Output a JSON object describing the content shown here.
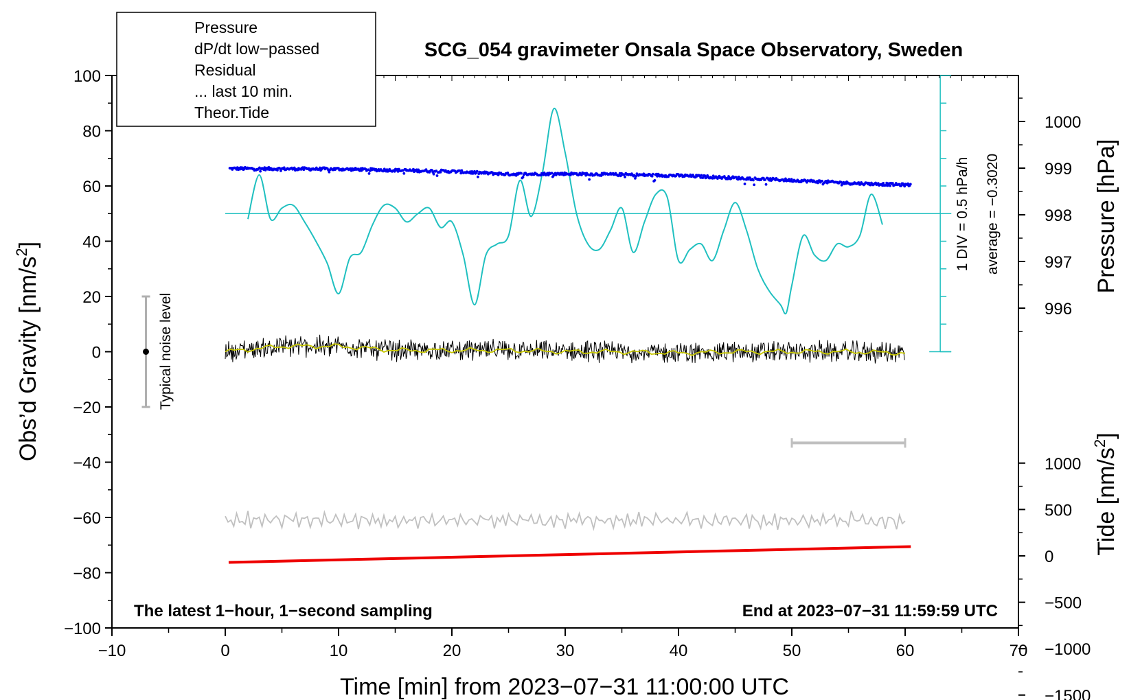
{
  "chart_data": {
    "type": "line",
    "title": "SCG_054 gravimeter Onsala Space Observatory, Sweden",
    "xlabel": "Time [min] from 2023−07−31 11:00:00 UTC",
    "ylabel_left": "Obs’d Gravity [nm/s²]",
    "ylabel_left_main": "Obs’d Gravity [nm/s",
    "ylabel_right_pressure": "Pressure [hPa]",
    "ylabel_right_tide_main": "Tide [nm/s",
    "ylabel_right_tide": "Tide [nm/s²]",
    "superscript": "2",
    "xlim": [
      -10,
      70
    ],
    "ylim": [
      -100,
      100
    ],
    "x_ticks": [
      -10,
      0,
      10,
      20,
      30,
      40,
      50,
      60,
      70
    ],
    "x_tick_labels": [
      "−10",
      "0",
      "10",
      "20",
      "30",
      "40",
      "50",
      "60",
      "70"
    ],
    "y_ticks": [
      -100,
      -80,
      -60,
      -40,
      -20,
      0,
      20,
      40,
      60,
      80,
      100
    ],
    "y_tick_labels": [
      "−100",
      "−80",
      "−60",
      "−40",
      "−20",
      "0",
      "20",
      "40",
      "60",
      "80",
      "100"
    ],
    "pressure_ticks": [
      996,
      997,
      998,
      999,
      1000
    ],
    "pressure_tick_labels": [
      "996",
      "997",
      "998",
      "999",
      "1000"
    ],
    "tide_ticks": [
      -1500,
      -1000,
      -500,
      0,
      500,
      1000
    ],
    "tide_tick_labels": [
      "−1500",
      "−1000",
      "−500",
      "0",
      "500",
      "1000"
    ],
    "legend": [
      {
        "label": "Pressure",
        "color": "#0000ee",
        "marker": true
      },
      {
        "label": "dP/dt low−passed",
        "color": "#20c0c0",
        "marker": true
      },
      {
        "label": "Residual",
        "color": "#000000",
        "marker": false
      },
      {
        "label": "... last 10 min.",
        "color": "#c0c0c0",
        "marker": false
      },
      {
        "label": "Theor.Tide",
        "color": "#ee0000",
        "marker": true
      }
    ],
    "annotations": {
      "noise_label": "Typical noise level",
      "noise_range": [
        -20,
        20
      ],
      "noise_x": -7,
      "div_label": "1 DIV = 0.5 hPa/h",
      "avg_label": "average = −0.3020",
      "bottom_left": "The latest 1−hour, 1−second sampling",
      "bottom_right": "End at 2023−07−31 11:59:59 UTC",
      "last10_range": [
        50,
        60
      ],
      "last10_y": -33
    },
    "series": [
      {
        "name": "Pressure",
        "color": "#0000ee",
        "unit": "hPa",
        "x": [
          0.5,
          10,
          20,
          25,
          30,
          40,
          50,
          55,
          60
        ],
        "values": [
          998.99,
          998.98,
          998.93,
          998.87,
          998.88,
          998.84,
          998.74,
          998.68,
          998.64
        ]
      },
      {
        "name": "dP/dt low−passed",
        "color": "#20c0c0",
        "unit": "gravity-axis",
        "baseline": 50,
        "x": [
          2,
          3,
          4,
          5,
          6,
          7,
          8,
          9,
          10,
          11,
          12,
          13,
          14,
          15,
          16,
          17,
          18,
          19,
          20,
          21,
          22,
          23,
          24,
          25,
          26,
          27,
          28,
          29,
          30,
          31,
          32,
          33,
          34,
          35,
          36,
          37,
          38,
          39,
          40,
          41,
          42,
          43,
          44,
          45,
          46,
          47,
          48,
          49,
          49.5,
          50,
          51,
          52,
          53,
          54,
          55,
          56,
          57,
          58
        ],
        "values": [
          48,
          64,
          48,
          52,
          53,
          47,
          40,
          32,
          21,
          34,
          36,
          46,
          53,
          52,
          47,
          50,
          52,
          45,
          47,
          35,
          17,
          35,
          39,
          42,
          62,
          49,
          65,
          88,
          72,
          50,
          39,
          37,
          44,
          52,
          36,
          47,
          57,
          56,
          33,
          37,
          39,
          33,
          44,
          54,
          44,
          30,
          22,
          17,
          14,
          24,
          42,
          35,
          33,
          39,
          38,
          42,
          57,
          46
        ]
      },
      {
        "name": "Residual",
        "color": "#000000",
        "unit": "nm/s²",
        "x": [
          0,
          5,
          10,
          15,
          20,
          25,
          30,
          35,
          40,
          45,
          50,
          55,
          60
        ],
        "values": [
          0,
          2,
          2,
          0.5,
          0.5,
          0.5,
          0,
          0,
          -0.5,
          0,
          0,
          0,
          -0.5
        ]
      },
      {
        "name": "Theor.Tide",
        "color": "#ee0000",
        "unit": "nm/s²",
        "x": [
          0.3,
          60.5
        ],
        "values": [
          -70,
          100
        ]
      },
      {
        "name": "... last 10 min.",
        "color": "#c0c0c0",
        "unit": "nm/s² (offset −60)",
        "x": [
          0,
          60
        ],
        "values": [
          -61,
          -61
        ]
      }
    ]
  }
}
